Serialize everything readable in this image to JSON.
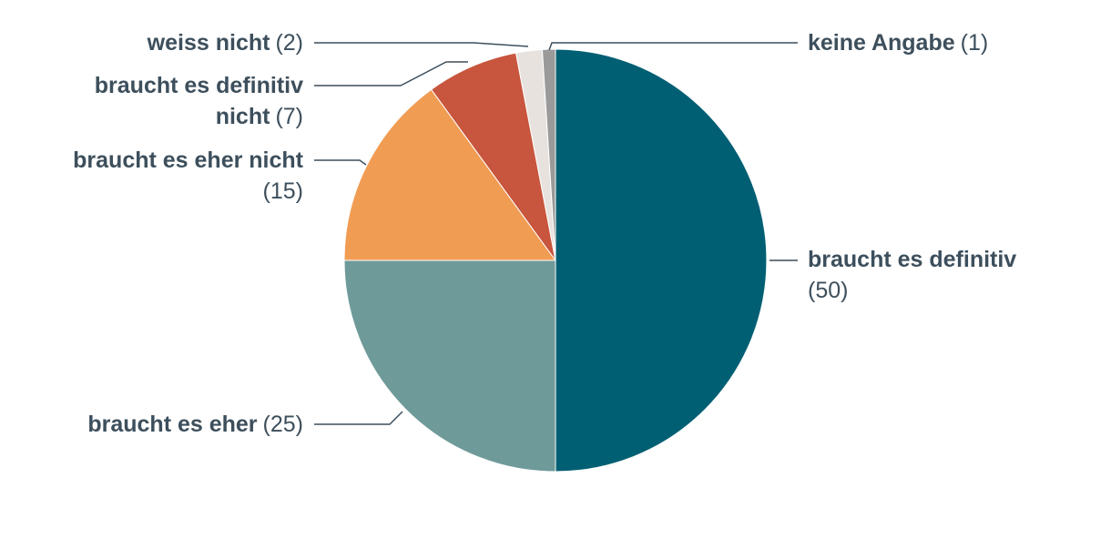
{
  "chart_data": {
    "type": "pie",
    "categories": [
      "braucht es definitiv",
      "braucht es eher",
      "braucht es eher nicht",
      "braucht es definitiv nicht",
      "weiss nicht",
      "keine Angabe"
    ],
    "values": [
      50,
      25,
      15,
      7,
      2,
      1
    ],
    "value_labels": [
      "(50)",
      "(25)",
      "(15)",
      "(7)",
      "(2)",
      "(1)"
    ],
    "colors": [
      "#005f73",
      "#6f9a9a",
      "#f19c53",
      "#c8553d",
      "#e8e2de",
      "#9a9a9a"
    ]
  }
}
